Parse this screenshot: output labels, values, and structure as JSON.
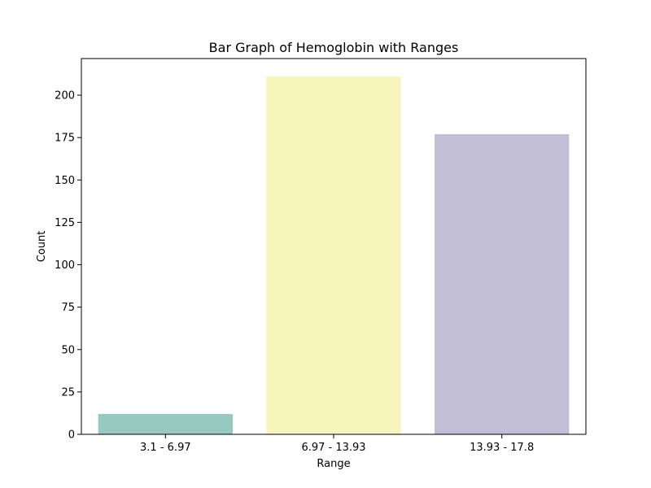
{
  "chart_data": {
    "type": "bar",
    "title": "Bar Graph of Hemoglobin with Ranges",
    "xlabel": "Range",
    "ylabel": "Count",
    "categories": [
      "3.1 - 6.97",
      "6.97 - 13.93",
      "13.93 - 17.8"
    ],
    "values": [
      12,
      211,
      177
    ],
    "colors": [
      "#96cac1",
      "#f6f6bc",
      "#c1bed6"
    ],
    "ylim": [
      0,
      221.6
    ],
    "yticks": [
      0,
      25,
      50,
      75,
      100,
      125,
      150,
      175,
      200
    ],
    "ytick_labels": [
      "0",
      "25",
      "50",
      "75",
      "100",
      "125",
      "150",
      "175",
      "200"
    ],
    "grid": false,
    "legend": false
  }
}
